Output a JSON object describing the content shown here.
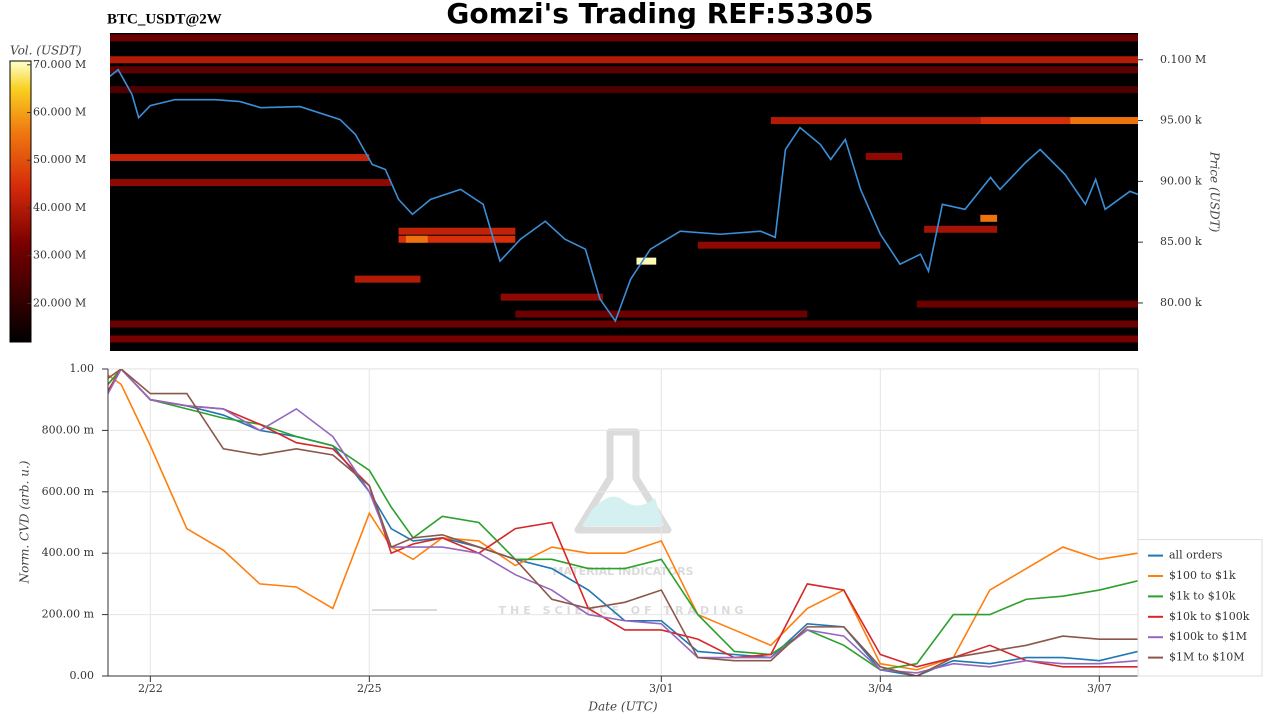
{
  "watermark": {
    "title": "MATERIAL INDICATORS",
    "subtitle": "THE SCIENCE OF TRADING"
  },
  "chart_data": [
    {
      "type": "heatmap",
      "title": "Gomzi's Trading REF:53305",
      "subtitle": "BTC_USDT@2W",
      "ylabel": "Price (USDT)",
      "xlim": [
        52.42,
        66.53
      ],
      "ylim": [
        76050,
        102200
      ],
      "yticks": [
        {
          "value": 80000,
          "label": "80.00 k"
        },
        {
          "value": 85000,
          "label": "85.00 k"
        },
        {
          "value": 90000,
          "label": "90.00 k"
        },
        {
          "value": 95000,
          "label": "95.00 k"
        },
        {
          "value": 100000,
          "label": "0.100 M"
        }
      ],
      "colorbar": {
        "label": "Vol. (USDT)",
        "lim": [
          11900000,
          70800000
        ],
        "ticks": [
          {
            "value": 20000000,
            "label": "20.000 M"
          },
          {
            "value": 30000000,
            "label": "30.000 M"
          },
          {
            "value": 40000000,
            "label": "40.000 M"
          },
          {
            "value": 50000000,
            "label": "50.000 M"
          },
          {
            "value": 60000000,
            "label": "60.000 M"
          },
          {
            "value": 70000000,
            "label": "70.000 M"
          }
        ]
      },
      "bands": [
        {
          "price": 100000,
          "start": 52.42,
          "end": 66.53,
          "volume": 40000000
        },
        {
          "price": 101800,
          "start": 52.42,
          "end": 66.53,
          "volume": 30000000
        },
        {
          "price": 99180,
          "start": 52.42,
          "end": 66.53,
          "volume": 28000000
        },
        {
          "price": 97540,
          "start": 52.42,
          "end": 66.53,
          "volume": 25000000
        },
        {
          "price": 95000,
          "start": 61.5,
          "end": 64.37,
          "volume": 40000000
        },
        {
          "price": 95000,
          "start": 64.37,
          "end": 65.6,
          "volume": 45000000
        },
        {
          "price": 95000,
          "start": 65.6,
          "end": 66.53,
          "volume": 55000000
        },
        {
          "price": 92050,
          "start": 62.8,
          "end": 63.3,
          "volume": 35000000
        },
        {
          "price": 91960,
          "start": 52.42,
          "end": 56.0,
          "volume": 42000000
        },
        {
          "price": 89900,
          "start": 52.42,
          "end": 56.3,
          "volume": 35000000
        },
        {
          "price": 86960,
          "start": 64.37,
          "end": 64.6,
          "volume": 55000000
        },
        {
          "price": 86060,
          "start": 63.6,
          "end": 64.6,
          "volume": 38000000
        },
        {
          "price": 85900,
          "start": 56.4,
          "end": 58.0,
          "volume": 42000000
        },
        {
          "price": 85240,
          "start": 56.4,
          "end": 58.0,
          "volume": 45000000
        },
        {
          "price": 85240,
          "start": 56.5,
          "end": 56.8,
          "volume": 55000000
        },
        {
          "price": 84750,
          "start": 60.5,
          "end": 63.0,
          "volume": 35000000
        },
        {
          "price": 83440,
          "start": 59.66,
          "end": 59.93,
          "volume": 70000000
        },
        {
          "price": 81960,
          "start": 55.8,
          "end": 56.7,
          "volume": 40000000
        },
        {
          "price": 80480,
          "start": 57.8,
          "end": 59.2,
          "volume": 35000000
        },
        {
          "price": 79910,
          "start": 63.5,
          "end": 66.53,
          "volume": 30000000
        },
        {
          "price": 79090,
          "start": 58.0,
          "end": 62.0,
          "volume": 30000000
        },
        {
          "price": 78270,
          "start": 52.42,
          "end": 66.53,
          "volume": 30000000
        },
        {
          "price": 77040,
          "start": 52.42,
          "end": 66.53,
          "volume": 32000000
        }
      ],
      "price": {
        "color": "#3a8fd8",
        "x": [
          52.42,
          52.56,
          52.75,
          52.84,
          53.0,
          53.34,
          53.89,
          54.23,
          54.51,
          55.05,
          55.6,
          55.81,
          56.04,
          56.22,
          56.4,
          56.59,
          56.84,
          57.25,
          57.56,
          57.66,
          57.79,
          58.07,
          58.41,
          58.68,
          58.96,
          59.16,
          59.37,
          59.58,
          59.85,
          60.26,
          60.81,
          61.36,
          61.56,
          61.7,
          61.9,
          62.18,
          62.32,
          62.52,
          62.73,
          63.0,
          63.27,
          63.55,
          63.66,
          63.85,
          64.16,
          64.51,
          64.64,
          64.99,
          65.19,
          65.53,
          65.81,
          65.95,
          66.08,
          66.42,
          66.53
        ],
        "values": [
          98520,
          99180,
          97130,
          95240,
          96230,
          96720,
          96720,
          96560,
          96060,
          96150,
          95080,
          93850,
          91390,
          90980,
          88520,
          87290,
          88520,
          89340,
          88110,
          86060,
          83440,
          85240,
          86720,
          85240,
          84420,
          80320,
          78520,
          81960,
          84420,
          85900,
          85650,
          85900,
          85400,
          92620,
          94420,
          93030,
          91800,
          93440,
          89340,
          85650,
          83190,
          84010,
          82620,
          88110,
          87700,
          90320,
          89340,
          91550,
          92620,
          90570,
          88110,
          90160,
          87700,
          89180,
          88930
        ]
      }
    },
    {
      "type": "line",
      "ylabel": "Norm. CVD (arb. u.)",
      "xlabel": "Date (UTC)",
      "grid": true,
      "legend": "right",
      "xlim": [
        52.42,
        66.53
      ],
      "ylim": [
        0,
        1
      ],
      "xticks": [
        {
          "value": 53,
          "label": "2/22"
        },
        {
          "value": 56,
          "label": "2/25"
        },
        {
          "value": 60,
          "label": "3/01"
        },
        {
          "value": 63,
          "label": "3/04"
        },
        {
          "value": 66,
          "label": "3/07"
        }
      ],
      "yticks": [
        {
          "value": 0,
          "label": "0.00"
        },
        {
          "value": 0.2,
          "label": "200.00 m"
        },
        {
          "value": 0.4,
          "label": "400.00 m"
        },
        {
          "value": 0.6,
          "label": "600.00 m"
        },
        {
          "value": 0.8,
          "label": "800.00 m"
        },
        {
          "value": 1,
          "label": "1.00"
        }
      ],
      "x": [
        52.42,
        52.6,
        53,
        53.5,
        54,
        54.5,
        55,
        55.5,
        56,
        56.3,
        56.6,
        57,
        57.5,
        58,
        58.5,
        59,
        59.5,
        60,
        60.5,
        61,
        61.5,
        62,
        62.5,
        63,
        63.5,
        64,
        64.5,
        65,
        65.5,
        66,
        66.53
      ],
      "series": [
        {
          "name": "all orders",
          "color": "#1f77b4",
          "values": [
            0.95,
            1.0,
            0.9,
            0.88,
            0.85,
            0.8,
            0.78,
            0.75,
            0.6,
            0.48,
            0.44,
            0.45,
            0.42,
            0.38,
            0.35,
            0.28,
            0.18,
            0.18,
            0.08,
            0.07,
            0.06,
            0.17,
            0.16,
            0.02,
            0.0,
            0.05,
            0.04,
            0.06,
            0.06,
            0.05,
            0.08
          ]
        },
        {
          "name": "$100 to $1k",
          "color": "#ff7f0e",
          "values": [
            0.98,
            0.95,
            0.75,
            0.48,
            0.41,
            0.3,
            0.29,
            0.22,
            0.53,
            0.42,
            0.38,
            0.45,
            0.44,
            0.36,
            0.42,
            0.4,
            0.4,
            0.44,
            0.2,
            0.15,
            0.1,
            0.22,
            0.28,
            0.04,
            0.02,
            0.06,
            0.28,
            0.35,
            0.42,
            0.38,
            0.4
          ]
        },
        {
          "name": "$1k to $10k",
          "color": "#2ca02c",
          "values": [
            0.95,
            1.0,
            0.9,
            0.87,
            0.84,
            0.82,
            0.78,
            0.75,
            0.67,
            0.55,
            0.45,
            0.52,
            0.5,
            0.38,
            0.38,
            0.35,
            0.35,
            0.38,
            0.2,
            0.08,
            0.07,
            0.15,
            0.1,
            0.02,
            0.04,
            0.2,
            0.2,
            0.25,
            0.26,
            0.28,
            0.31
          ]
        },
        {
          "name": "$10k to $100k",
          "color": "#d62728",
          "values": [
            0.93,
            1.0,
            0.9,
            0.88,
            0.87,
            0.82,
            0.76,
            0.74,
            0.62,
            0.4,
            0.43,
            0.45,
            0.4,
            0.48,
            0.5,
            0.22,
            0.15,
            0.15,
            0.12,
            0.06,
            0.07,
            0.3,
            0.28,
            0.07,
            0.03,
            0.06,
            0.1,
            0.05,
            0.03,
            0.03,
            0.03
          ]
        },
        {
          "name": "$100k to $1M",
          "color": "#9467bd",
          "values": [
            0.92,
            1.0,
            0.9,
            0.88,
            0.87,
            0.8,
            0.87,
            0.78,
            0.6,
            0.42,
            0.42,
            0.42,
            0.4,
            0.33,
            0.28,
            0.2,
            0.18,
            0.17,
            0.06,
            0.06,
            0.06,
            0.15,
            0.13,
            0.02,
            0.01,
            0.04,
            0.03,
            0.05,
            0.04,
            0.04,
            0.05
          ]
        },
        {
          "name": "$1M to $10M",
          "color": "#8c564b",
          "values": [
            0.97,
            1.0,
            0.92,
            0.92,
            0.74,
            0.72,
            0.74,
            0.72,
            0.62,
            0.42,
            0.45,
            0.46,
            0.42,
            0.38,
            0.25,
            0.22,
            0.24,
            0.28,
            0.06,
            0.05,
            0.05,
            0.16,
            0.16,
            0.03,
            0.0,
            0.06,
            0.08,
            0.1,
            0.13,
            0.12,
            0.12
          ]
        }
      ]
    }
  ]
}
